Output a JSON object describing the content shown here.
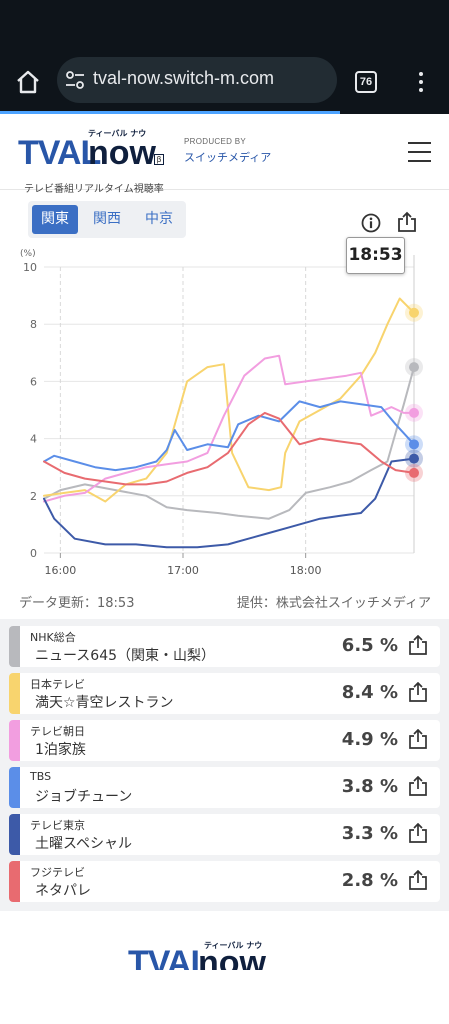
{
  "browser": {
    "url": "tval-now.switch-m.com",
    "tab_count": "76",
    "icons": [
      "home-icon",
      "site-settings-icon",
      "tab-switcher-icon",
      "more-options-icon"
    ]
  },
  "header": {
    "logo_main": "TVAL",
    "logo_now": "now",
    "logo_kana": "ティーバル ナウ",
    "logo_beta": "β",
    "logo_sub": "テレビ番組リアルタイム視聴率",
    "produced_by": "PRODUCED BY",
    "producer_name": "スイッチメディア",
    "brand_color": "#2856a8"
  },
  "regions": [
    {
      "label": "関東",
      "active": true
    },
    {
      "label": "関西",
      "active": false
    },
    {
      "label": "中京",
      "active": false
    }
  ],
  "chart_data": {
    "type": "line",
    "ylabel": "(%)",
    "y_ticks": [
      "10",
      "8",
      "6",
      "4",
      "2",
      "0"
    ],
    "ylim": [
      0,
      10
    ],
    "x_ticks": [
      "16:00",
      "17:00",
      "18:00"
    ],
    "xlim": [
      "15:52",
      "18:53"
    ],
    "cursor_time": "18:53",
    "grid": true,
    "series": [
      {
        "name": "NHK総合",
        "color": "#b8b9bd",
        "points": [
          [
            0,
            1.9
          ],
          [
            8,
            2.2
          ],
          [
            20,
            2.4
          ],
          [
            35,
            2.2
          ],
          [
            50,
            2.0
          ],
          [
            60,
            1.6
          ],
          [
            70,
            1.5
          ],
          [
            85,
            1.4
          ],
          [
            95,
            1.3
          ],
          [
            110,
            1.2
          ],
          [
            120,
            1.5
          ],
          [
            128,
            2.1
          ],
          [
            140,
            2.3
          ],
          [
            150,
            2.5
          ],
          [
            160,
            2.9
          ],
          [
            168,
            3.2
          ],
          [
            172,
            4.2
          ],
          [
            176,
            5.2
          ],
          [
            181,
            6.5
          ]
        ]
      },
      {
        "name": "日本テレビ",
        "color": "#f8d46e",
        "points": [
          [
            0,
            2.0
          ],
          [
            10,
            2.1
          ],
          [
            20,
            2.2
          ],
          [
            30,
            1.8
          ],
          [
            40,
            2.4
          ],
          [
            50,
            2.6
          ],
          [
            60,
            3.5
          ],
          [
            70,
            6.0
          ],
          [
            80,
            6.5
          ],
          [
            88,
            6.6
          ],
          [
            92,
            3.5
          ],
          [
            100,
            2.3
          ],
          [
            110,
            2.2
          ],
          [
            116,
            2.3
          ],
          [
            118,
            3.5
          ],
          [
            125,
            4.6
          ],
          [
            135,
            5.0
          ],
          [
            145,
            5.4
          ],
          [
            155,
            6.2
          ],
          [
            162,
            7.0
          ],
          [
            168,
            8.0
          ],
          [
            174,
            8.9
          ],
          [
            181,
            8.4
          ]
        ]
      },
      {
        "name": "テレビ朝日",
        "color": "#f29ee0",
        "points": [
          [
            0,
            1.8
          ],
          [
            10,
            2.0
          ],
          [
            20,
            2.1
          ],
          [
            30,
            2.6
          ],
          [
            40,
            2.8
          ],
          [
            50,
            3.0
          ],
          [
            60,
            3.1
          ],
          [
            70,
            3.2
          ],
          [
            80,
            3.5
          ],
          [
            88,
            4.8
          ],
          [
            98,
            6.2
          ],
          [
            108,
            6.8
          ],
          [
            115,
            6.9
          ],
          [
            118,
            5.9
          ],
          [
            128,
            6.0
          ],
          [
            138,
            6.1
          ],
          [
            148,
            6.2
          ],
          [
            155,
            6.3
          ],
          [
            160,
            4.8
          ],
          [
            170,
            5.1
          ],
          [
            176,
            4.9
          ],
          [
            181,
            4.9
          ]
        ]
      },
      {
        "name": "TBS",
        "color": "#5b8ee8",
        "points": [
          [
            0,
            3.2
          ],
          [
            5,
            3.4
          ],
          [
            15,
            3.2
          ],
          [
            25,
            3.0
          ],
          [
            35,
            2.9
          ],
          [
            45,
            3.0
          ],
          [
            55,
            3.2
          ],
          [
            60,
            3.6
          ],
          [
            64,
            4.3
          ],
          [
            70,
            3.6
          ],
          [
            80,
            3.8
          ],
          [
            90,
            3.7
          ],
          [
            95,
            4.5
          ],
          [
            105,
            4.8
          ],
          [
            115,
            4.6
          ],
          [
            125,
            5.3
          ],
          [
            135,
            5.1
          ],
          [
            145,
            5.3
          ],
          [
            155,
            5.2
          ],
          [
            165,
            5.1
          ],
          [
            172,
            4.5
          ],
          [
            181,
            3.8
          ]
        ]
      },
      {
        "name": "テレビ東京",
        "color": "#3d5aa8",
        "points": [
          [
            0,
            1.9
          ],
          [
            5,
            1.2
          ],
          [
            15,
            0.5
          ],
          [
            30,
            0.3
          ],
          [
            45,
            0.3
          ],
          [
            60,
            0.2
          ],
          [
            75,
            0.2
          ],
          [
            90,
            0.3
          ],
          [
            100,
            0.5
          ],
          [
            110,
            0.7
          ],
          [
            120,
            0.9
          ],
          [
            125,
            1.0
          ],
          [
            135,
            1.2
          ],
          [
            145,
            1.3
          ],
          [
            155,
            1.4
          ],
          [
            162,
            1.9
          ],
          [
            170,
            3.2
          ],
          [
            181,
            3.3
          ]
        ]
      },
      {
        "name": "フジテレビ",
        "color": "#e86b70",
        "points": [
          [
            0,
            3.2
          ],
          [
            10,
            2.8
          ],
          [
            20,
            2.6
          ],
          [
            30,
            2.5
          ],
          [
            40,
            2.4
          ],
          [
            50,
            2.4
          ],
          [
            60,
            2.5
          ],
          [
            70,
            2.8
          ],
          [
            80,
            3.0
          ],
          [
            90,
            3.5
          ],
          [
            100,
            4.5
          ],
          [
            108,
            4.9
          ],
          [
            115,
            4.7
          ],
          [
            125,
            3.8
          ],
          [
            135,
            4.0
          ],
          [
            145,
            3.9
          ],
          [
            155,
            3.8
          ],
          [
            165,
            3.2
          ],
          [
            172,
            2.9
          ],
          [
            181,
            2.8
          ]
        ]
      }
    ]
  },
  "meta": {
    "updated": "データ更新：18:53",
    "provider": "提供：株式会社スイッチメディア"
  },
  "programs": [
    {
      "station": "NHK総合",
      "program": "ニュース645（関東・山梨）",
      "rating": "6.5 %",
      "color": "#b8b9bd"
    },
    {
      "station": "日本テレビ",
      "program": "満天☆青空レストラン",
      "rating": "8.4 %",
      "color": "#f8d46e"
    },
    {
      "station": "テレビ朝日",
      "program": "1泊家族",
      "rating": "4.9 %",
      "color": "#f29ee0"
    },
    {
      "station": "TBS",
      "program": "ジョブチューン",
      "rating": "3.8 %",
      "color": "#5b8ee8"
    },
    {
      "station": "テレビ東京",
      "program": "土曜スペシャル",
      "rating": "3.3 %",
      "color": "#3d5aa8"
    },
    {
      "station": "フジテレビ",
      "program": "ネタパレ",
      "rating": "2.8 %",
      "color": "#e86b70"
    }
  ],
  "footer": {
    "logo_main": "TVAL",
    "logo_now": "now",
    "logo_kana": "ティーバル ナウ"
  }
}
